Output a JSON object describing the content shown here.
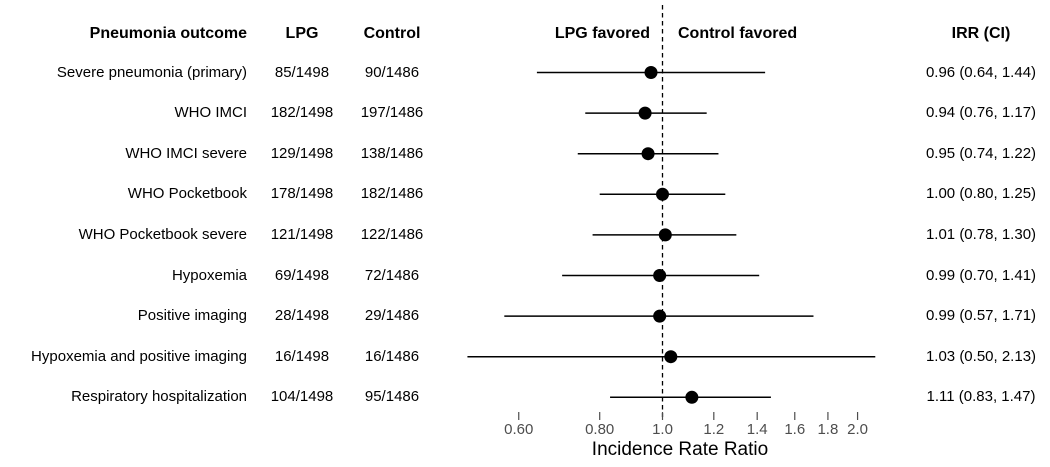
{
  "header": {
    "outcome": "Pneumonia outcome",
    "lpg": "LPG",
    "control": "Control",
    "left_favored": "LPG favored",
    "right_favored": "Control favored",
    "irr": "IRR (CI)"
  },
  "chart_data": {
    "type": "forest",
    "xlabel": "Incidence Rate Ratio",
    "x_scale": "log",
    "x_ticks": [
      0.6,
      0.8,
      1.0,
      1.2,
      1.4,
      1.6,
      1.8,
      2.0
    ],
    "x_tick_labels": [
      "0.60",
      "0.80",
      "1.0",
      "1.2",
      "1.4",
      "1.6",
      "1.8",
      "2.0"
    ],
    "reference_line": 1.0,
    "legend_left": "LPG favored",
    "legend_right": "Control favored",
    "columns": [
      "Pneumonia outcome",
      "LPG",
      "Control",
      "IRR (CI)"
    ],
    "rows": [
      {
        "outcome": "Severe pneumonia (primary)",
        "lpg": "85/1498",
        "control": "90/1486",
        "irr": 0.96,
        "ci_low": 0.64,
        "ci_high": 1.44,
        "irr_ci": "0.96 (0.64, 1.44)"
      },
      {
        "outcome": "WHO IMCI",
        "lpg": "182/1498",
        "control": "197/1486",
        "irr": 0.94,
        "ci_low": 0.76,
        "ci_high": 1.17,
        "irr_ci": "0.94 (0.76, 1.17)"
      },
      {
        "outcome": "WHO IMCI severe",
        "lpg": "129/1498",
        "control": "138/1486",
        "irr": 0.95,
        "ci_low": 0.74,
        "ci_high": 1.22,
        "irr_ci": "0.95 (0.74, 1.22)"
      },
      {
        "outcome": "WHO Pocketbook",
        "lpg": "178/1498",
        "control": "182/1486",
        "irr": 1.0,
        "ci_low": 0.8,
        "ci_high": 1.25,
        "irr_ci": "1.00 (0.80, 1.25)"
      },
      {
        "outcome": "WHO Pocketbook severe",
        "lpg": "121/1498",
        "control": "122/1486",
        "irr": 1.01,
        "ci_low": 0.78,
        "ci_high": 1.3,
        "irr_ci": "1.01 (0.78, 1.30)"
      },
      {
        "outcome": "Hypoxemia",
        "lpg": "69/1498",
        "control": "72/1486",
        "irr": 0.99,
        "ci_low": 0.7,
        "ci_high": 1.41,
        "irr_ci": "0.99 (0.70, 1.41)"
      },
      {
        "outcome": "Positive imaging",
        "lpg": "28/1498",
        "control": "29/1486",
        "irr": 0.99,
        "ci_low": 0.57,
        "ci_high": 1.71,
        "irr_ci": "0.99 (0.57, 1.71)"
      },
      {
        "outcome": "Hypoxemia and positive imaging",
        "lpg": "16/1498",
        "control": "16/1486",
        "irr": 1.03,
        "ci_low": 0.5,
        "ci_high": 2.13,
        "irr_ci": "1.03 (0.50, 2.13)"
      },
      {
        "outcome": "Respiratory hospitalization",
        "lpg": "104/1498",
        "control": "95/1486",
        "irr": 1.11,
        "ci_low": 0.83,
        "ci_high": 1.47,
        "irr_ci": "1.11 (0.83, 1.47)"
      }
    ]
  },
  "colors": {
    "background": "#ffffff",
    "text": "#000000",
    "tick_text": "#4d4d4d",
    "line": "#000000",
    "point": "#000000",
    "reference_line": "#000000"
  }
}
